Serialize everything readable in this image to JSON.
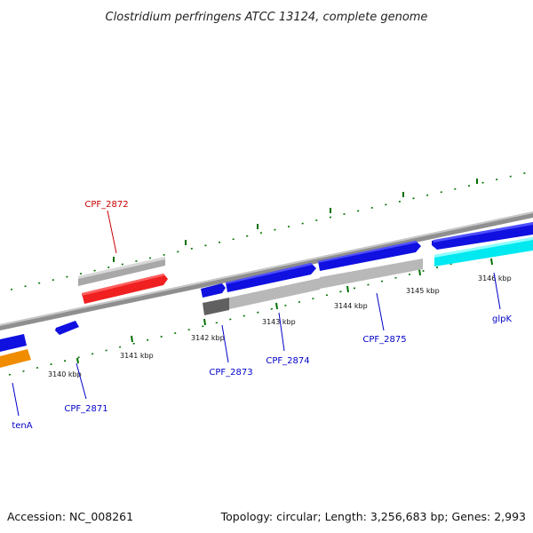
{
  "title": "Clostridium perfringens ATCC 13124, complete genome",
  "footer": {
    "accession": "Accession: NC_008261",
    "summary": "Topology: circular; Length: 3,256,683 bp; Genes: 2,993"
  },
  "colors": {
    "backbone": "#8a8a8a",
    "tick": "#007000",
    "forward_gene": "#1010e0",
    "forward_rna": "#a0a0a0",
    "reverse_gene": "#f02020",
    "cyan_gene": "#00e8f0",
    "orange_gene": "#f08c00",
    "dark_gene": "#606060",
    "label_blue": "#0000c8",
    "label_red": "#c80000"
  },
  "ticks": [
    "3140 kbp",
    "3141 kbp",
    "3142 kbp",
    "3143 kbp",
    "3144 kbp",
    "3145 kbp",
    "3146 kbp"
  ],
  "gene_labels": [
    "CPF_2872",
    "CPF_2871",
    "tenA",
    "CPF_2873",
    "CPF_2874",
    "CPF_2875",
    "glpK"
  ]
}
